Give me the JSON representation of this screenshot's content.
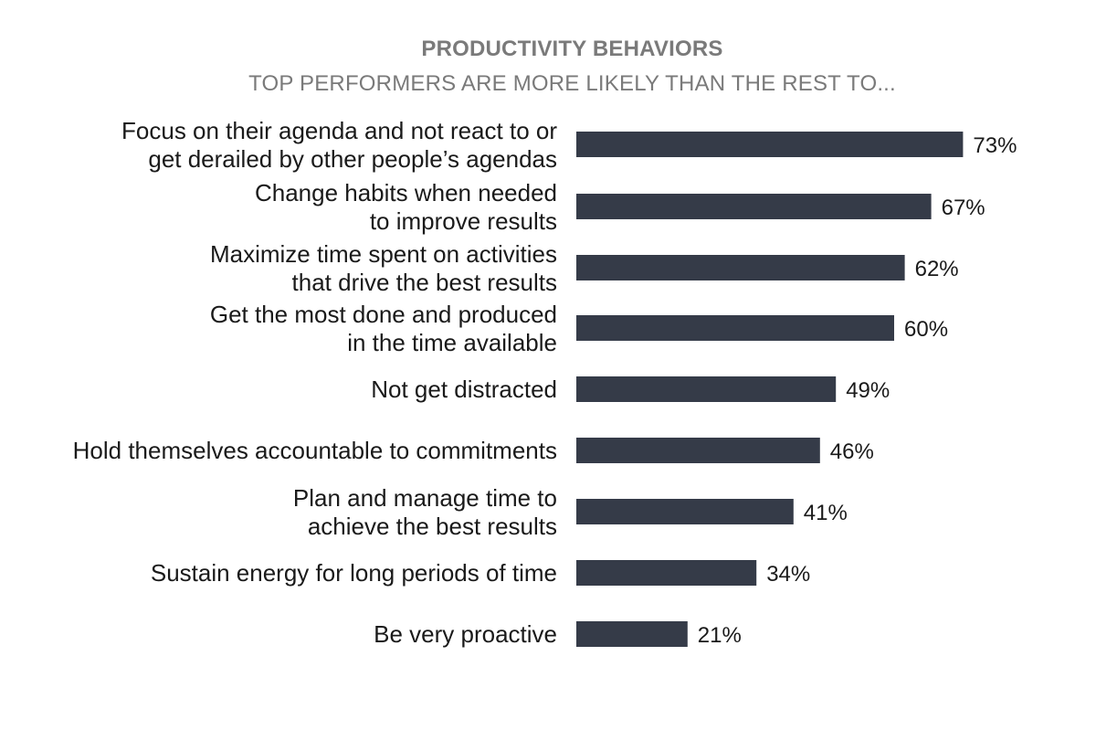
{
  "chart_data": {
    "type": "bar",
    "orientation": "horizontal",
    "title": "PRODUCTIVITY BEHAVIORS",
    "subtitle": "TOP PERFORMERS ARE MORE LIKELY THAN THE REST TO...",
    "categories": [
      [
        "Focus on their agenda and not react to or",
        "get derailed by other people’s agendas"
      ],
      [
        "Change habits when needed",
        "to improve results"
      ],
      [
        "Maximize time spent on activities",
        "that drive the best results"
      ],
      [
        "Get the most done and produced",
        "in the time available"
      ],
      [
        "Not get distracted"
      ],
      [
        "Hold themselves accountable to commitments"
      ],
      [
        "Plan and manage time to",
        "achieve the best results"
      ],
      [
        "Sustain energy for long periods of time"
      ],
      [
        "Be very proactive"
      ]
    ],
    "values": [
      73,
      67,
      62,
      60,
      49,
      46,
      41,
      34,
      21
    ],
    "value_labels": [
      "73%",
      "67%",
      "62%",
      "60%",
      "49%",
      "46%",
      "41%",
      "34%",
      "21%"
    ],
    "unit": "%",
    "xlim": [
      0,
      100
    ],
    "bar_color": "#353b48",
    "grid": false,
    "legend": "none"
  }
}
